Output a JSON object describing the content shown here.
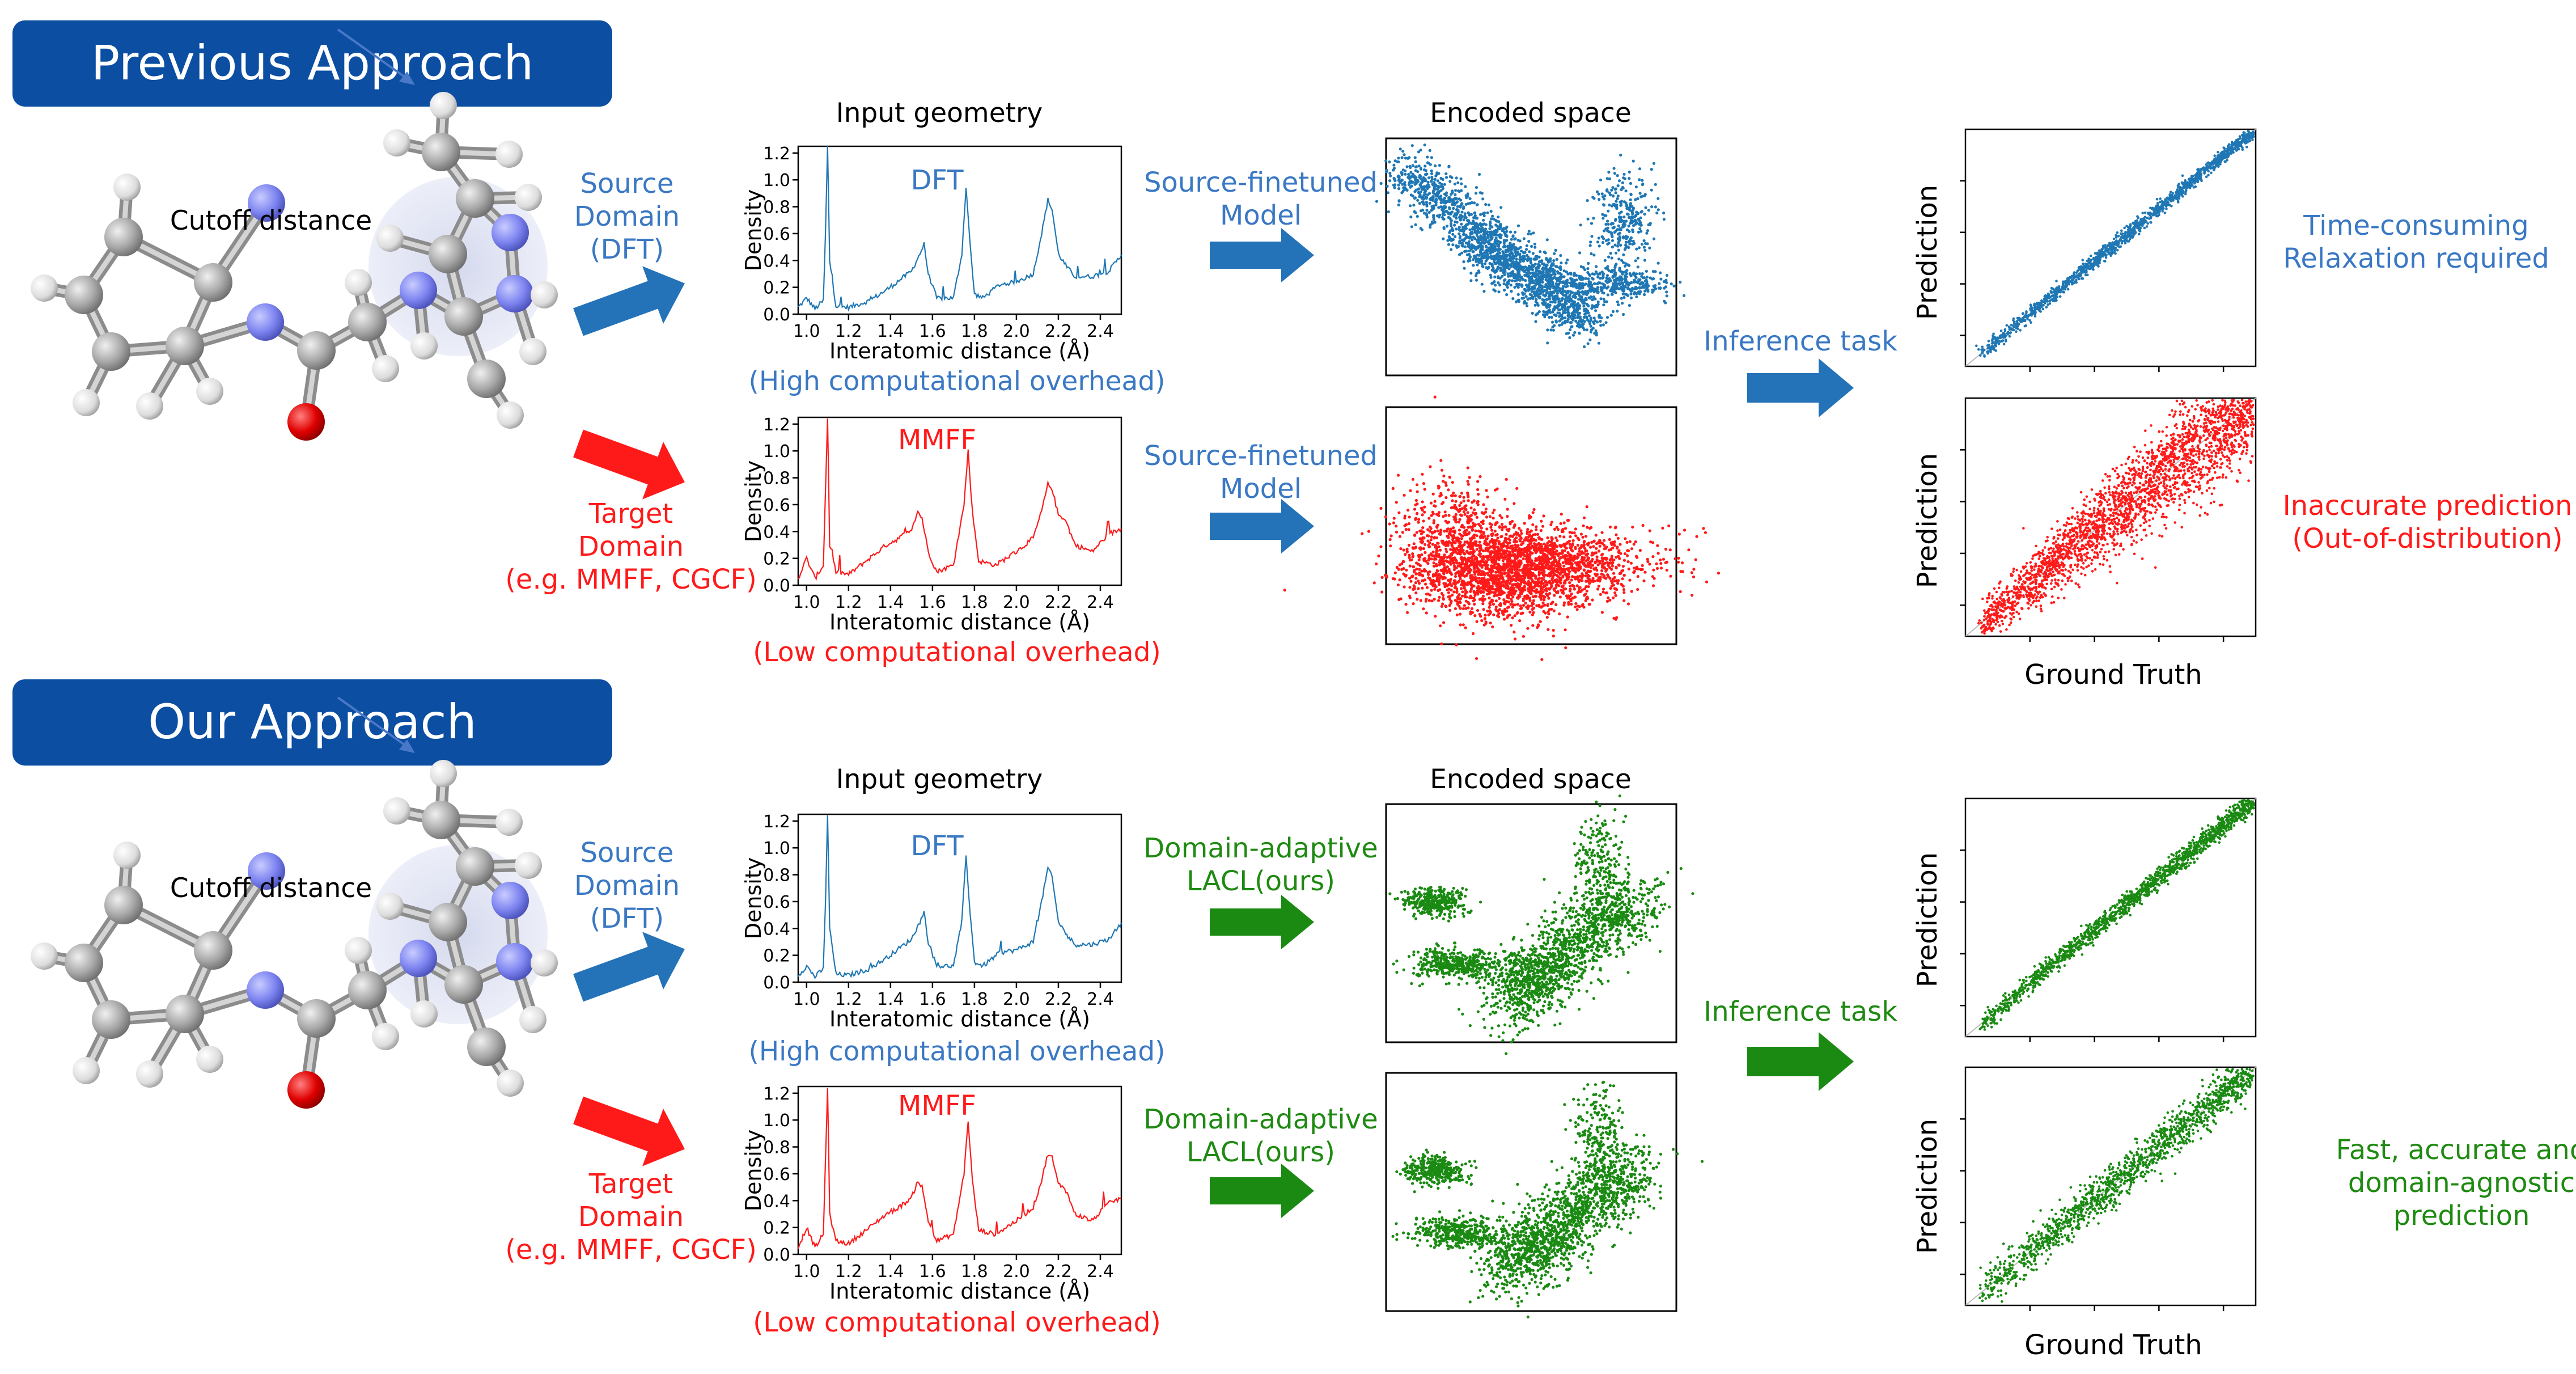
{
  "colors": {
    "banner": "#0b4ea2",
    "blue": "#3a78c4",
    "red": "#ff1a1a",
    "green": "#1f8a12",
    "plot_blue": "#1f77b4",
    "plot_red": "#ff1a1a",
    "plot_green": "#1a8a12"
  },
  "sections": [
    {
      "banner": "Previous Approach",
      "molecule_label": "Cutoff distance",
      "source_label": [
        "Source",
        "Domain",
        "(DFT)"
      ],
      "target_label": [
        "Target",
        "Domain",
        "(e.g. MMFF, CGCF)"
      ],
      "geometry_title": "Input geometry",
      "dft_label": "DFT",
      "mmff_label": "MMFF",
      "xlabel": "Interatomic distance (Å)",
      "ylabel": "Density",
      "high_overhead": "(High computational overhead)",
      "low_overhead": "(Low computational overhead)",
      "model_top": [
        "Source-finetuned",
        "Model"
      ],
      "model_bottom": [
        "Source-finetuned",
        "Model"
      ],
      "encoded_title": "Encoded space",
      "inference": "Inference task",
      "pred_label": "Prediction",
      "truth_label": "Ground Truth",
      "result_top": [
        "Time-consuming",
        "Relaxation required"
      ],
      "result_bottom": [
        "Inaccurate prediction",
        "(Out-of-distribution)"
      ]
    },
    {
      "banner": "Our Approach",
      "molecule_label": "Cutoff distance",
      "source_label": [
        "Source",
        "Domain",
        "(DFT)"
      ],
      "target_label": [
        "Target",
        "Domain",
        "(e.g. MMFF, CGCF)"
      ],
      "geometry_title": "Input geometry",
      "dft_label": "DFT",
      "mmff_label": "MMFF",
      "xlabel": "Interatomic distance (Å)",
      "ylabel": "Density",
      "high_overhead": "(High computational overhead)",
      "low_overhead": "(Low computational overhead)",
      "model_top": [
        "Domain-adaptive",
        "LACL(ours)"
      ],
      "model_bottom": [
        "Domain-adaptive",
        "LACL(ours)"
      ],
      "encoded_title": "Encoded space",
      "inference": "Inference task",
      "pred_label": "Prediction",
      "truth_label": "Ground Truth",
      "result_bottom": [
        "Fast, accurate and",
        "domain-agnostic",
        "prediction"
      ]
    }
  ],
  "density_axis": {
    "xticks": [
      "1.0",
      "1.2",
      "1.4",
      "1.6",
      "1.8",
      "2.0",
      "2.2",
      "2.4"
    ],
    "yticks": [
      "0.0",
      "0.2",
      "0.4",
      "0.6",
      "0.8",
      "1.0",
      "1.2"
    ]
  },
  "chart_data": [
    {
      "type": "line",
      "id": "density-dft",
      "xlabel": "Interatomic distance (Å)",
      "ylabel": "Density",
      "xlim": [
        0.96,
        2.5
      ],
      "ylim": [
        0,
        1.25
      ],
      "x": [
        0.96,
        1.0,
        1.04,
        1.08,
        1.09,
        1.1,
        1.11,
        1.14,
        1.2,
        1.3,
        1.38,
        1.44,
        1.5,
        1.54,
        1.56,
        1.58,
        1.62,
        1.7,
        1.74,
        1.76,
        1.78,
        1.8,
        1.84,
        1.92,
        2.0,
        2.08,
        2.12,
        2.15,
        2.17,
        2.2,
        2.24,
        2.28,
        2.36,
        2.44,
        2.5
      ],
      "y": [
        0.05,
        0.12,
        0.04,
        0.1,
        0.6,
        1.25,
        0.4,
        0.06,
        0.05,
        0.1,
        0.18,
        0.25,
        0.32,
        0.45,
        0.52,
        0.3,
        0.12,
        0.12,
        0.45,
        0.95,
        0.5,
        0.15,
        0.12,
        0.22,
        0.24,
        0.3,
        0.6,
        0.85,
        0.78,
        0.45,
        0.35,
        0.28,
        0.28,
        0.32,
        0.44
      ]
    },
    {
      "type": "line",
      "id": "density-mmff",
      "xlabel": "Interatomic distance (Å)",
      "ylabel": "Density",
      "xlim": [
        0.96,
        2.5
      ],
      "ylim": [
        0,
        1.25
      ],
      "x": [
        0.96,
        1.0,
        1.04,
        1.08,
        1.09,
        1.1,
        1.11,
        1.14,
        1.2,
        1.3,
        1.38,
        1.44,
        1.5,
        1.53,
        1.55,
        1.58,
        1.62,
        1.7,
        1.75,
        1.77,
        1.79,
        1.82,
        1.9,
        2.0,
        2.08,
        2.12,
        2.15,
        2.17,
        2.2,
        2.23,
        2.28,
        2.36,
        2.44,
        2.5
      ],
      "y": [
        0.05,
        0.2,
        0.05,
        0.15,
        0.7,
        1.25,
        0.3,
        0.1,
        0.08,
        0.2,
        0.3,
        0.35,
        0.42,
        0.55,
        0.5,
        0.25,
        0.1,
        0.15,
        0.6,
        1.0,
        0.55,
        0.18,
        0.15,
        0.25,
        0.35,
        0.55,
        0.75,
        0.72,
        0.52,
        0.5,
        0.3,
        0.25,
        0.38,
        0.42
      ]
    }
  ]
}
